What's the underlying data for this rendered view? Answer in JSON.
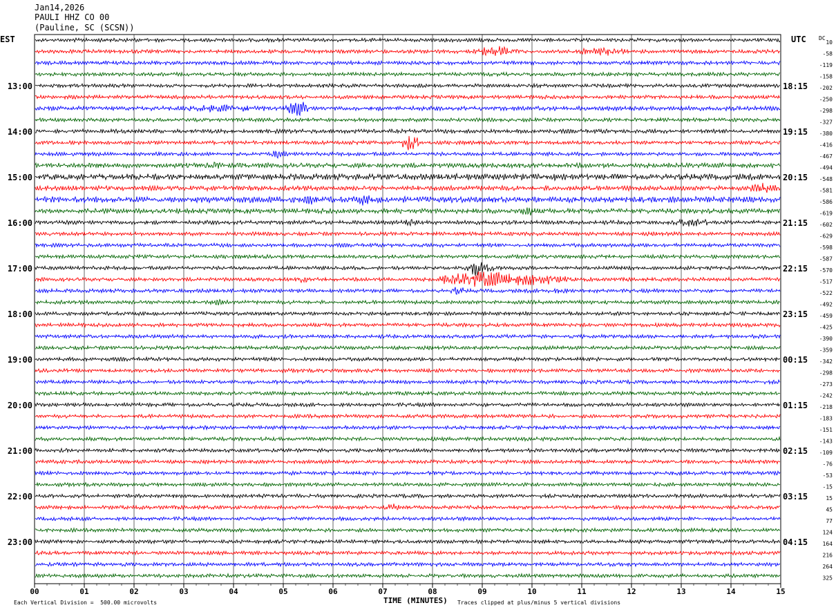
{
  "header": {
    "date": "Jan14,2026",
    "station": "PAULI HHZ CO 00",
    "location": "(Pauline, SC (SCSN))"
  },
  "left_axis_label": "EST",
  "right_axis_label": "UTC",
  "dc_label": "DC",
  "footer": {
    "scale_note": "Each Vertical Division =  500.00 microvolts",
    "x_axis_title": "TIME (MINUTES)",
    "clip_note": "Traces clipped at plus/minus 5 vertical divisions"
  },
  "colors": {
    "trace_cycle": [
      "#000000",
      "#ff0000",
      "#0000ff",
      "#006400"
    ],
    "grid": "#000000"
  },
  "chart_data": {
    "type": "line",
    "title": "PAULI HHZ CO 00",
    "xlabel": "TIME (MINUTES)",
    "x_ticks": [
      "00",
      "01",
      "02",
      "03",
      "04",
      "05",
      "06",
      "07",
      "08",
      "09",
      "10",
      "11",
      "12",
      "13",
      "14",
      "15"
    ],
    "xlim": [
      0,
      15
    ],
    "est_hour_labels": [
      "13:00",
      "14:00",
      "15:00",
      "16:00",
      "17:00",
      "18:00",
      "19:00",
      "20:00",
      "21:00",
      "22:00",
      "23:00"
    ],
    "utc_hour_labels": [
      "18:15",
      "19:15",
      "20:15",
      "21:15",
      "22:15",
      "23:15",
      "00:15",
      "01:15",
      "02:15",
      "03:15",
      "04:15"
    ],
    "dc_offsets": [
      10,
      -58,
      -119,
      -158,
      -202,
      -250,
      -298,
      -327,
      -380,
      -416,
      -467,
      -494,
      -548,
      -581,
      -586,
      -619,
      -602,
      -629,
      -598,
      -587,
      -570,
      -517,
      -522,
      -492,
      -459,
      -425,
      -390,
      -359,
      -342,
      -298,
      -273,
      -242,
      -218,
      -183,
      -151,
      -143,
      -109,
      -76,
      -53,
      -15,
      15,
      45,
      77,
      124,
      164,
      216,
      264,
      325
    ],
    "trace_count": 48,
    "vertical_division_microvolts": 500,
    "clip_divisions": 5,
    "trace_amplitude": [
      1.0,
      1.0,
      1.0,
      1.0,
      1.0,
      1.0,
      1.2,
      1.0,
      1.1,
      1.0,
      1.0,
      1.3,
      1.6,
      1.3,
      1.6,
      1.3,
      1.1,
      1.0,
      1.0,
      1.0,
      1.0,
      1.0,
      1.0,
      1.0,
      1.0,
      1.0,
      1.0,
      1.0,
      1.0,
      1.0,
      1.0,
      1.0,
      1.0,
      1.0,
      1.0,
      1.0,
      1.0,
      1.0,
      1.0,
      1.0,
      1.0,
      1.0,
      1.0,
      1.0,
      1.0,
      1.0,
      1.0,
      1.0
    ],
    "events": [
      {
        "trace": 1,
        "minute": 9.3,
        "amplitude": 3.0,
        "duration": 0.6
      },
      {
        "trace": 1,
        "minute": 11.4,
        "amplitude": 2.5,
        "duration": 0.6
      },
      {
        "trace": 6,
        "minute": 5.3,
        "amplitude": 4.5,
        "duration": 0.3
      },
      {
        "trace": 6,
        "minute": 3.8,
        "amplitude": 2.2,
        "duration": 1.2
      },
      {
        "trace": 9,
        "minute": 7.55,
        "amplitude": 5.0,
        "duration": 0.2
      },
      {
        "trace": 10,
        "minute": 4.9,
        "amplitude": 2.5,
        "duration": 0.2
      },
      {
        "trace": 11,
        "minute": 3.6,
        "amplitude": 2.0,
        "duration": 0.4
      },
      {
        "trace": 12,
        "minute": 10.4,
        "amplitude": 2.5,
        "duration": 0.2
      },
      {
        "trace": 13,
        "minute": 14.7,
        "amplitude": 3.0,
        "duration": 0.4
      },
      {
        "trace": 14,
        "minute": 5.5,
        "amplitude": 3.0,
        "duration": 0.3
      },
      {
        "trace": 14,
        "minute": 6.6,
        "amplitude": 3.0,
        "duration": 0.3
      },
      {
        "trace": 15,
        "minute": 9.9,
        "amplitude": 3.0,
        "duration": 0.2
      },
      {
        "trace": 16,
        "minute": 13.2,
        "amplitude": 2.5,
        "duration": 0.5
      },
      {
        "trace": 16,
        "minute": 7.6,
        "amplitude": 2.2,
        "duration": 0.3
      },
      {
        "trace": 20,
        "minute": 8.95,
        "amplitude": 5.0,
        "duration": 0.3
      },
      {
        "trace": 21,
        "minute": 9.0,
        "amplitude": 5.0,
        "duration": 0.9
      },
      {
        "trace": 21,
        "minute": 10.0,
        "amplitude": 4.0,
        "duration": 0.7
      },
      {
        "trace": 21,
        "minute": 5.4,
        "amplitude": 2.0,
        "duration": 0.2
      },
      {
        "trace": 22,
        "minute": 8.5,
        "amplitude": 2.5,
        "duration": 0.2
      },
      {
        "trace": 22,
        "minute": 10.5,
        "amplitude": 2.0,
        "duration": 0.3
      },
      {
        "trace": 23,
        "minute": 3.7,
        "amplitude": 2.2,
        "duration": 0.2
      },
      {
        "trace": 41,
        "minute": 7.2,
        "amplitude": 2.0,
        "duration": 0.3
      }
    ]
  }
}
